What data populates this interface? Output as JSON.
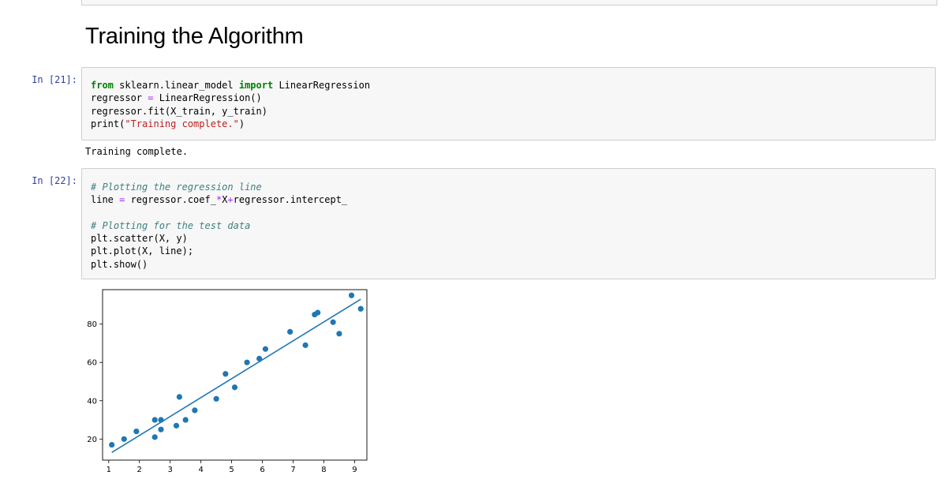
{
  "notebook": {
    "heading": "Training the Algorithm",
    "cells": [
      {
        "prompt": "In [21]:",
        "lines": [
          [
            {
              "t": "from",
              "c": "kw"
            },
            {
              "t": " sklearn.linear_model ",
              "c": ""
            },
            {
              "t": "import",
              "c": "kw"
            },
            {
              "t": " LinearRegression",
              "c": ""
            }
          ],
          [
            {
              "t": "regressor ",
              "c": ""
            },
            {
              "t": "=",
              "c": "op"
            },
            {
              "t": " LinearRegression()",
              "c": ""
            }
          ],
          [
            {
              "t": "regressor.fit(X_train, y_train)",
              "c": ""
            }
          ],
          [
            {
              "t": "print(",
              "c": ""
            },
            {
              "t": "\"Training complete.\"",
              "c": "str"
            },
            {
              "t": ")",
              "c": ""
            }
          ]
        ],
        "output": "Training complete."
      },
      {
        "prompt": "In [22]:",
        "lines": [
          [
            {
              "t": "# Plotting the regression line",
              "c": "cm"
            }
          ],
          [
            {
              "t": "line ",
              "c": ""
            },
            {
              "t": "=",
              "c": "op"
            },
            {
              "t": " regressor.coef_",
              "c": ""
            },
            {
              "t": "*",
              "c": "op"
            },
            {
              "t": "X",
              "c": ""
            },
            {
              "t": "+",
              "c": "op"
            },
            {
              "t": "regressor.intercept_",
              "c": ""
            }
          ],
          [
            {
              "t": "",
              "c": ""
            }
          ],
          [
            {
              "t": "# Plotting for the test data",
              "c": "cm"
            }
          ],
          [
            {
              "t": "plt.scatter(X, y)",
              "c": ""
            }
          ],
          [
            {
              "t": "plt.plot(X, line);",
              "c": ""
            }
          ],
          [
            {
              "t": "plt.show()",
              "c": ""
            }
          ]
        ]
      }
    ]
  },
  "chart_data": {
    "type": "scatter",
    "title": "",
    "xlabel": "",
    "ylabel": "",
    "xlim": [
      0.8,
      9.4
    ],
    "ylim": [
      9,
      98
    ],
    "xticks": [
      1,
      2,
      3,
      4,
      5,
      6,
      7,
      8,
      9
    ],
    "yticks": [
      20,
      40,
      60,
      80
    ],
    "colors": {
      "marker": "#1f77b4",
      "line": "#1f77b4"
    },
    "points": [
      {
        "x": 1.1,
        "y": 17
      },
      {
        "x": 1.5,
        "y": 20
      },
      {
        "x": 1.9,
        "y": 24
      },
      {
        "x": 2.5,
        "y": 21
      },
      {
        "x": 2.5,
        "y": 30
      },
      {
        "x": 2.7,
        "y": 25
      },
      {
        "x": 2.7,
        "y": 30
      },
      {
        "x": 3.2,
        "y": 27
      },
      {
        "x": 3.3,
        "y": 42
      },
      {
        "x": 3.5,
        "y": 30
      },
      {
        "x": 3.8,
        "y": 35
      },
      {
        "x": 4.5,
        "y": 41
      },
      {
        "x": 4.8,
        "y": 54
      },
      {
        "x": 5.1,
        "y": 47
      },
      {
        "x": 5.5,
        "y": 60
      },
      {
        "x": 5.9,
        "y": 62
      },
      {
        "x": 6.1,
        "y": 67
      },
      {
        "x": 6.9,
        "y": 76
      },
      {
        "x": 7.4,
        "y": 69
      },
      {
        "x": 7.7,
        "y": 85
      },
      {
        "x": 7.8,
        "y": 86
      },
      {
        "x": 8.3,
        "y": 81
      },
      {
        "x": 8.5,
        "y": 75
      },
      {
        "x": 8.9,
        "y": 95
      },
      {
        "x": 9.2,
        "y": 88
      }
    ],
    "regression_line": [
      {
        "x": 1.1,
        "y": 13
      },
      {
        "x": 9.2,
        "y": 93
      }
    ]
  }
}
